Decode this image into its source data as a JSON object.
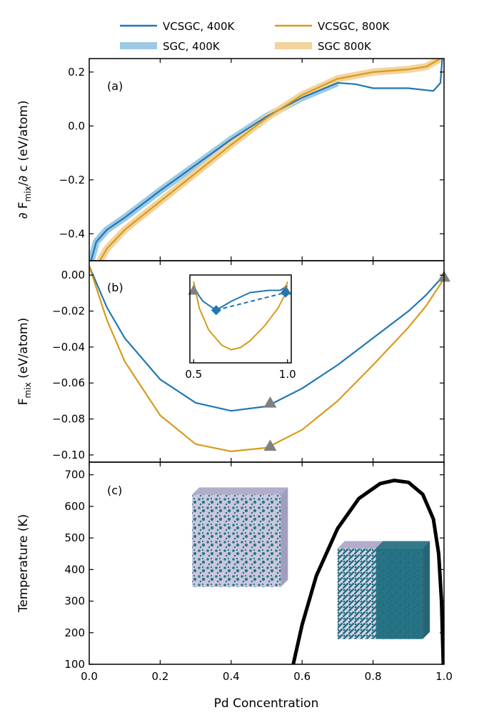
{
  "colors": {
    "vcsgc_400": "#1f77b4",
    "vcsgc_800": "#d99a1c",
    "sgc_400": "#9ccae6",
    "sgc_800": "#f3d49c",
    "marker_gray": "#808080",
    "phase_boundary": "#000000",
    "lattice_pd": "#1f6f7f",
    "lattice_base": "#c8c4dc"
  },
  "legend": [
    {
      "key": "vcsgc_400",
      "label": "VCSGC, 400K",
      "style": "thin"
    },
    {
      "key": "vcsgc_800",
      "label": "VCSGC, 800K",
      "style": "thin"
    },
    {
      "key": "sgc_400",
      "label": "SGC, 400K",
      "style": "thick"
    },
    {
      "key": "sgc_800",
      "label": "SGC 800K",
      "style": "thick"
    }
  ],
  "chart_data": [
    {
      "panel": "(a)",
      "type": "line",
      "ylabel_main": "∂ F",
      "ylabel_sub": "mix",
      "ylabel_rest": "/∂ c (eV/atom)",
      "xlim": [
        0,
        1
      ],
      "ylim": [
        -0.5,
        0.25
      ],
      "yticks": [
        0.2,
        0.0,
        -0.2,
        -0.4
      ],
      "ytick_labels": [
        "0.2",
        "0.0",
        "−0.2",
        "−0.4"
      ],
      "series": [
        {
          "key": "sgc_400",
          "style": "thick",
          "x": [
            0.005,
            0.02,
            0.05,
            0.1,
            0.2,
            0.3,
            0.4,
            0.5,
            0.6,
            0.7
          ],
          "y": [
            -0.5,
            -0.43,
            -0.385,
            -0.34,
            -0.24,
            -0.145,
            -0.05,
            0.035,
            0.105,
            0.16
          ]
        },
        {
          "key": "sgc_800",
          "style": "thick",
          "x": [
            0.03,
            0.05,
            0.1,
            0.2,
            0.3,
            0.4,
            0.5,
            0.6,
            0.7,
            0.8,
            0.9,
            0.95,
            0.99
          ],
          "y": [
            -0.5,
            -0.455,
            -0.385,
            -0.28,
            -0.175,
            -0.07,
            0.03,
            0.115,
            0.175,
            0.2,
            0.21,
            0.22,
            0.25
          ]
        },
        {
          "key": "vcsgc_400",
          "style": "thin",
          "x": [
            0.005,
            0.02,
            0.05,
            0.1,
            0.2,
            0.3,
            0.4,
            0.5,
            0.6,
            0.7,
            0.75,
            0.8,
            0.9,
            0.97,
            0.99,
            0.995
          ],
          "y": [
            -0.5,
            -0.43,
            -0.385,
            -0.34,
            -0.24,
            -0.145,
            -0.05,
            0.035,
            0.105,
            0.16,
            0.155,
            0.14,
            0.14,
            0.13,
            0.16,
            0.25
          ]
        },
        {
          "key": "vcsgc_800",
          "style": "thin",
          "x": [
            0.03,
            0.05,
            0.1,
            0.2,
            0.3,
            0.4,
            0.5,
            0.6,
            0.7,
            0.8,
            0.9,
            0.95,
            0.99
          ],
          "y": [
            -0.5,
            -0.455,
            -0.385,
            -0.28,
            -0.175,
            -0.07,
            0.03,
            0.115,
            0.175,
            0.2,
            0.21,
            0.22,
            0.25
          ]
        }
      ]
    },
    {
      "panel": "(b)",
      "type": "line",
      "ylabel_main": "F",
      "ylabel_sub": "mix",
      "ylabel_rest": " (eV/atom)",
      "xlim": [
        0,
        1
      ],
      "ylim": [
        -0.104,
        0.008
      ],
      "yticks": [
        0.0,
        -0.02,
        -0.04,
        -0.06,
        -0.08,
        -0.1
      ],
      "ytick_labels": [
        "0.00",
        "−0.02",
        "−0.04",
        "−0.06",
        "−0.08",
        "−0.10"
      ],
      "series": [
        {
          "key": "vcsgc_400",
          "x": [
            0.0,
            0.05,
            0.1,
            0.2,
            0.3,
            0.4,
            0.5,
            0.6,
            0.7,
            0.8,
            0.9,
            0.95,
            1.0
          ],
          "y": [
            0.005,
            -0.018,
            -0.035,
            -0.058,
            -0.071,
            -0.0755,
            -0.073,
            -0.063,
            -0.05,
            -0.035,
            -0.02,
            -0.011,
            0.0
          ]
        },
        {
          "key": "vcsgc_800",
          "x": [
            0.0,
            0.05,
            0.1,
            0.2,
            0.3,
            0.4,
            0.5,
            0.6,
            0.7,
            0.8,
            0.9,
            0.95,
            1.0
          ],
          "y": [
            0.005,
            -0.025,
            -0.048,
            -0.078,
            -0.094,
            -0.098,
            -0.096,
            -0.086,
            -0.07,
            -0.05,
            -0.029,
            -0.017,
            -0.002
          ]
        }
      ],
      "markers": [
        {
          "shape": "triangle",
          "x": 0.51,
          "y": -0.071
        },
        {
          "shape": "triangle",
          "x": 0.51,
          "y": -0.095
        },
        {
          "shape": "triangle",
          "x": 1.0,
          "y": -0.001
        }
      ],
      "inset": {
        "xlim": [
          0.48,
          1.02
        ],
        "ylim": [
          -0.045,
          -0.005
        ],
        "xticks": [
          0.5,
          1.0
        ],
        "xtick_labels": [
          "0.5",
          "1.0"
        ],
        "series": [
          {
            "key": "vcsgc_400",
            "x": [
              0.5,
              0.55,
              0.62,
              0.7,
              0.8,
              0.9,
              0.96,
              1.0
            ],
            "y": [
              -0.011,
              -0.017,
              -0.021,
              -0.017,
              -0.013,
              -0.012,
              -0.012,
              -0.01
            ]
          },
          {
            "key": "vcsgc_800",
            "x": [
              0.5,
              0.53,
              0.58,
              0.65,
              0.7,
              0.75,
              0.8,
              0.88,
              0.95,
              0.98,
              1.0
            ],
            "y": [
              -0.008,
              -0.02,
              -0.03,
              -0.037,
              -0.039,
              -0.038,
              -0.035,
              -0.028,
              -0.02,
              -0.015,
              -0.008
            ]
          }
        ],
        "tangent": {
          "key": "vcsgc_400",
          "x": [
            0.62,
            0.99
          ],
          "y": [
            -0.021,
            -0.013
          ]
        },
        "markers": [
          {
            "shape": "triangle",
            "x": 0.5,
            "y": -0.012
          },
          {
            "shape": "triangle",
            "x": 0.99,
            "y": -0.012
          },
          {
            "shape": "diamond",
            "x": 0.62,
            "y": -0.021
          },
          {
            "shape": "diamond",
            "x": 0.99,
            "y": -0.013
          }
        ]
      }
    },
    {
      "panel": "(c)",
      "type": "line",
      "xlabel": "Pd Concentration",
      "ylabel": "Temperature (K)",
      "xlim": [
        0,
        1
      ],
      "ylim": [
        100,
        740
      ],
      "xticks": [
        0.0,
        0.2,
        0.4,
        0.6,
        0.8,
        1.0
      ],
      "xtick_labels": [
        "0.0",
        "0.2",
        "0.4",
        "0.6",
        "0.8",
        "1.0"
      ],
      "yticks": [
        100,
        200,
        300,
        400,
        500,
        600,
        700
      ],
      "ytick_labels": [
        "100",
        "200",
        "300",
        "400",
        "500",
        "600",
        "700"
      ],
      "series": [
        {
          "key": "phase_boundary",
          "x": [
            0.575,
            0.6,
            0.64,
            0.7,
            0.76,
            0.82,
            0.86,
            0.9,
            0.94,
            0.97,
            0.985,
            0.993,
            0.998
          ],
          "y": [
            100,
            225,
            380,
            530,
            625,
            672,
            682,
            676,
            638,
            560,
            450,
            300,
            100
          ]
        }
      ],
      "insets": [
        {
          "name": "disordered-structure",
          "x": [
            0.29,
            0.56
          ],
          "y": [
            345,
            660
          ],
          "ordered": false
        },
        {
          "name": "ordered-structure",
          "x": [
            0.7,
            0.96
          ],
          "y": [
            180,
            490
          ],
          "ordered": true
        }
      ]
    }
  ]
}
